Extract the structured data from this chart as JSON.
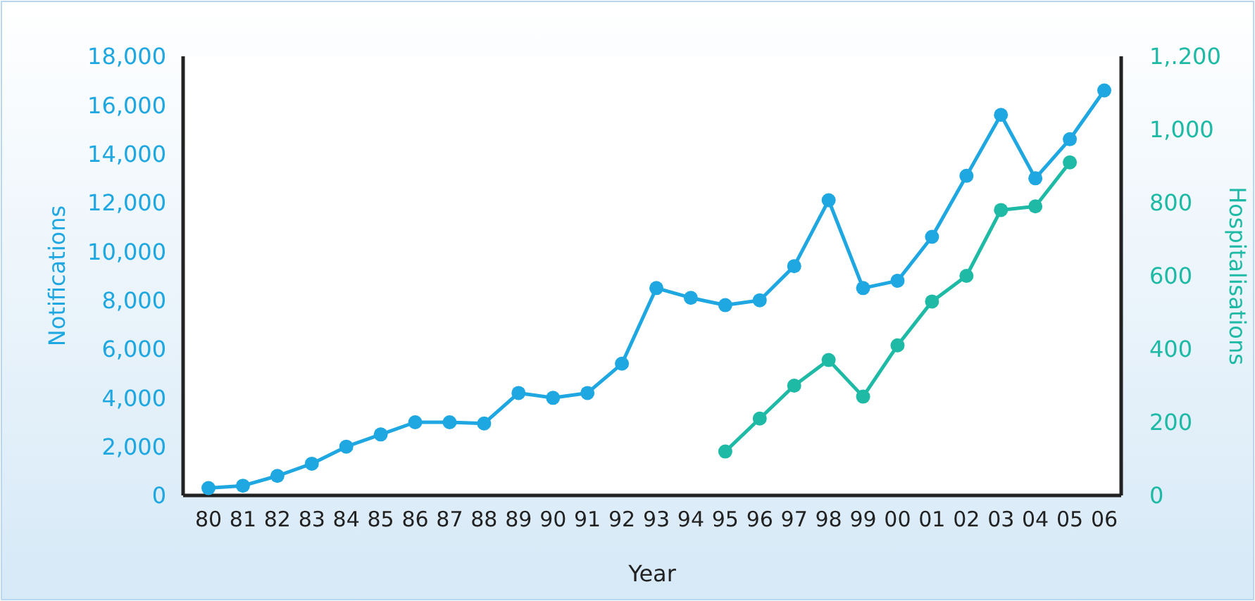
{
  "chart_data": {
    "type": "line",
    "xlabel": "Year",
    "ylabel": "Notifications",
    "y2label": "Hospitalisations",
    "categories": [
      "80",
      "81",
      "82",
      "83",
      "84",
      "85",
      "86",
      "87",
      "88",
      "89",
      "90",
      "91",
      "92",
      "93",
      "94",
      "95",
      "96",
      "97",
      "98",
      "99",
      "00",
      "01",
      "02",
      "03",
      "04",
      "05",
      "06"
    ],
    "series": [
      {
        "color": "#1ea7e1",
        "values": [
          300,
          400,
          800,
          1300,
          2000,
          2500,
          3000,
          3000,
          2950,
          4200,
          4000,
          4200,
          5400,
          8500,
          8100,
          7800,
          8000,
          9400,
          12100,
          8500,
          8800,
          10600,
          13100,
          15600,
          13000,
          14600,
          16600
        ]
      },
      {
        "color": "#1fbaa6",
        "axis": "y2",
        "values": [
          null,
          null,
          null,
          null,
          null,
          null,
          null,
          null,
          null,
          null,
          null,
          null,
          null,
          null,
          null,
          120,
          210,
          300,
          370,
          270,
          410,
          530,
          600,
          780,
          790,
          910,
          null
        ]
      }
    ],
    "ylim": [
      0,
      18000
    ],
    "yticks": [
      {
        "value": 0,
        "label": "0"
      },
      {
        "value": 2000,
        "label": "2,000"
      },
      {
        "value": 4000,
        "label": "4,000"
      },
      {
        "value": 6000,
        "label": "6,000"
      },
      {
        "value": 8000,
        "label": "8,000"
      },
      {
        "value": 10000,
        "label": "10,000"
      },
      {
        "value": 12000,
        "label": "12,000"
      },
      {
        "value": 14000,
        "label": "14,000"
      },
      {
        "value": 16000,
        "label": "16,000"
      },
      {
        "value": 18000,
        "label": "18,000"
      }
    ],
    "y2lim": [
      0,
      1200
    ],
    "y2ticks": [
      0,
      200,
      400,
      600,
      800,
      {
        "value": 1000,
        "label": "1,000"
      },
      {
        "value": 1200,
        "label": "1,.200"
      }
    ],
    "marker": "circle",
    "grid": false
  }
}
